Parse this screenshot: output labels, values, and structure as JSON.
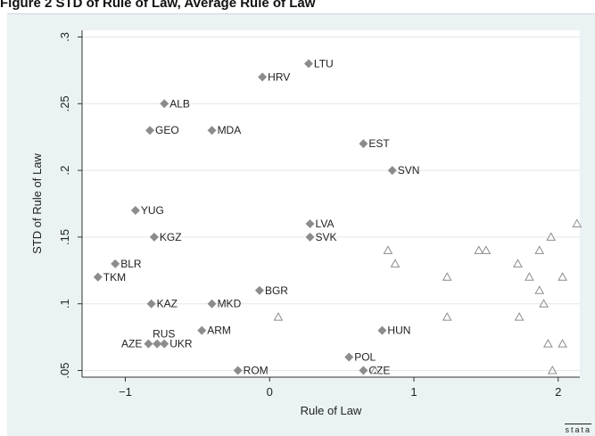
{
  "figure_title": "Figure 2 STD of Rule of Law, Average Rule of Law",
  "logo_text": "stata",
  "colors": {
    "background": "#eaf2f3",
    "plot_area": "#ffffff",
    "marker": "#8c8c8c",
    "gridline": "#e6e6e6",
    "axis": "#333333"
  },
  "chart_data": {
    "type": "scatter",
    "title": "",
    "xlabel": "Rule of Law",
    "ylabel": "STD of Rule of Law",
    "xlim": [
      -1.3,
      2.15
    ],
    "ylim": [
      0.045,
      0.305
    ],
    "xticks": [
      -1,
      0,
      1,
      2
    ],
    "xtick_labels": [
      "−1",
      "0",
      "1",
      "2"
    ],
    "yticks": [
      0.05,
      0.1,
      0.15,
      0.2,
      0.25,
      0.3
    ],
    "ytick_labels": [
      ".05",
      ".1",
      ".15",
      ".2",
      ".25",
      ".3"
    ],
    "grid": true,
    "series": [
      {
        "marker": "diamond",
        "points": [
          {
            "label": "LTU",
            "x": 0.27,
            "y": 0.28
          },
          {
            "label": "HRV",
            "x": -0.05,
            "y": 0.27
          },
          {
            "label": "ALB",
            "x": -0.73,
            "y": 0.25
          },
          {
            "label": "GEO",
            "x": -0.83,
            "y": 0.23
          },
          {
            "label": "MDA",
            "x": -0.4,
            "y": 0.23
          },
          {
            "label": "EST",
            "x": 0.65,
            "y": 0.22
          },
          {
            "label": "SVN",
            "x": 0.85,
            "y": 0.2
          },
          {
            "label": "YUG",
            "x": -0.93,
            "y": 0.17
          },
          {
            "label": "LVA",
            "x": 0.28,
            "y": 0.16
          },
          {
            "label": "KGZ",
            "x": -0.8,
            "y": 0.15
          },
          {
            "label": "SVK",
            "x": 0.28,
            "y": 0.15
          },
          {
            "label": "BLR",
            "x": -1.07,
            "y": 0.13
          },
          {
            "label": "TKM",
            "x": -1.19,
            "y": 0.12
          },
          {
            "label": "BGR",
            "x": -0.07,
            "y": 0.11
          },
          {
            "label": "KAZ",
            "x": -0.82,
            "y": 0.1
          },
          {
            "label": "MKD",
            "x": -0.4,
            "y": 0.1
          },
          {
            "label": "ARM",
            "x": -0.47,
            "y": 0.08
          },
          {
            "label": "HUN",
            "x": 0.78,
            "y": 0.08
          },
          {
            "label": "RUS",
            "x": -0.78,
            "y": 0.07
          },
          {
            "label": "AZE",
            "x": -0.84,
            "y": 0.07
          },
          {
            "label": "UKR",
            "x": -0.73,
            "y": 0.07
          },
          {
            "label": "POL",
            "x": 0.55,
            "y": 0.06
          },
          {
            "label": "ROM",
            "x": -0.22,
            "y": 0.05
          },
          {
            "label": "CZE",
            "x": 0.65,
            "y": 0.05
          }
        ]
      },
      {
        "marker": "triangle",
        "points": [
          {
            "x": 2.13,
            "y": 0.16
          },
          {
            "x": 1.95,
            "y": 0.15
          },
          {
            "x": 0.82,
            "y": 0.14
          },
          {
            "x": 1.45,
            "y": 0.14
          },
          {
            "x": 1.5,
            "y": 0.14
          },
          {
            "x": 1.87,
            "y": 0.14
          },
          {
            "x": 0.87,
            "y": 0.13
          },
          {
            "x": 1.72,
            "y": 0.13
          },
          {
            "x": 1.23,
            "y": 0.12
          },
          {
            "x": 1.8,
            "y": 0.12
          },
          {
            "x": 2.03,
            "y": 0.12
          },
          {
            "x": 1.87,
            "y": 0.11
          },
          {
            "x": 1.9,
            "y": 0.1
          },
          {
            "x": 0.06,
            "y": 0.09
          },
          {
            "x": 1.23,
            "y": 0.09
          },
          {
            "x": 1.73,
            "y": 0.09
          },
          {
            "x": 1.93,
            "y": 0.07
          },
          {
            "x": 2.03,
            "y": 0.07
          },
          {
            "x": 0.73,
            "y": 0.05
          },
          {
            "x": 1.96,
            "y": 0.05
          }
        ]
      }
    ]
  }
}
